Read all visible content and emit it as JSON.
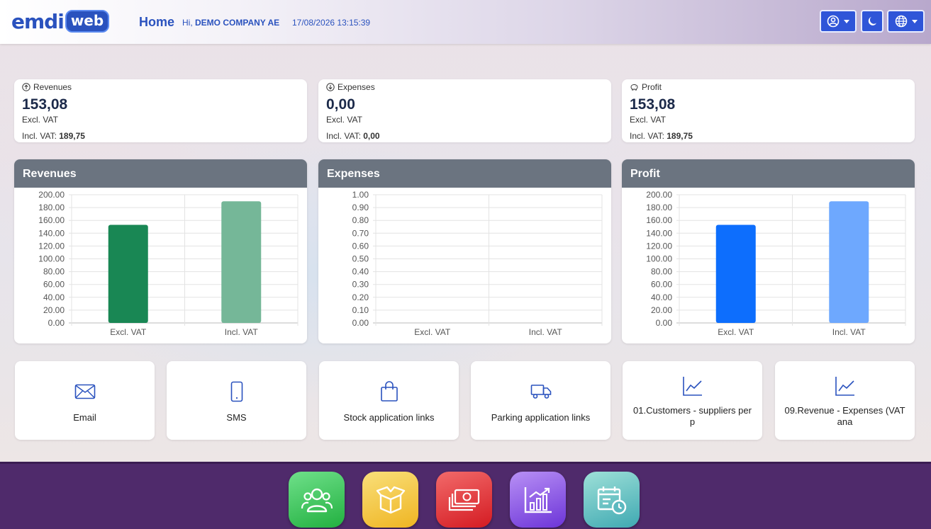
{
  "header": {
    "logo_main": "emdi",
    "logo_badge": "web",
    "title": "Home",
    "greeting_prefix": "Hi, ",
    "company": "DEMO COMPANY AE",
    "datetime": "17/08/2026 13:15:39",
    "buttons": [
      {
        "icon": "user-circle-icon",
        "dropdown": true
      },
      {
        "icon": "moon-icon",
        "dropdown": false
      },
      {
        "icon": "globe-icon",
        "dropdown": true
      }
    ]
  },
  "summary": [
    {
      "label": "Revenues",
      "icon": "arrow-up-circle-icon",
      "value": "153,08",
      "excl_label": "Excl. VAT",
      "incl_label": "Incl. VAT: ",
      "incl_value": "189,75"
    },
    {
      "label": "Expenses",
      "icon": "arrow-down-circle-icon",
      "value": "0,00",
      "excl_label": "Excl. VAT",
      "incl_label": "Incl. VAT: ",
      "incl_value": "0,00"
    },
    {
      "label": "Profit",
      "icon": "piggy-bank-icon",
      "value": "153,08",
      "excl_label": "Excl. VAT",
      "incl_label": "Incl. VAT: ",
      "incl_value": "189,75"
    }
  ],
  "chart_data": [
    {
      "type": "bar",
      "title": "Revenues",
      "categories": [
        "Excl. VAT",
        "Incl. VAT"
      ],
      "values": [
        153.08,
        189.75
      ],
      "colors": [
        "#198754",
        "#75b798"
      ],
      "ylim": [
        0,
        200
      ],
      "yticks": [
        "0.00",
        "20.00",
        "40.00",
        "60.00",
        "80.00",
        "100.00",
        "120.00",
        "140.00",
        "160.00",
        "180.00",
        "200.00"
      ],
      "grid": true
    },
    {
      "type": "bar",
      "title": "Expenses",
      "categories": [
        "Excl. VAT",
        "Incl. VAT"
      ],
      "values": [
        0,
        0
      ],
      "colors": [
        "#dc3545",
        "#ea868f"
      ],
      "ylim": [
        0,
        1
      ],
      "yticks": [
        "0.00",
        "0.10",
        "0.20",
        "0.30",
        "0.40",
        "0.50",
        "0.60",
        "0.70",
        "0.80",
        "0.90",
        "1.00"
      ],
      "grid": true
    },
    {
      "type": "bar",
      "title": "Profit",
      "categories": [
        "Excl. VAT",
        "Incl. VAT"
      ],
      "values": [
        153.08,
        189.75
      ],
      "colors": [
        "#0d6efd",
        "#6ea8fe"
      ],
      "ylim": [
        0,
        200
      ],
      "yticks": [
        "0.00",
        "20.00",
        "40.00",
        "60.00",
        "80.00",
        "100.00",
        "120.00",
        "140.00",
        "160.00",
        "180.00",
        "200.00"
      ],
      "grid": true
    }
  ],
  "tiles": [
    {
      "label": "Email",
      "icon": "envelope-icon"
    },
    {
      "label": "SMS",
      "icon": "phone-icon"
    },
    {
      "label": "Stock application links",
      "icon": "shopping-bag-icon"
    },
    {
      "label": "Parking application links",
      "icon": "truck-icon"
    },
    {
      "label": "01.Customers - suppliers per p",
      "icon": "line-chart-icon"
    },
    {
      "label": "09.Revenue - Expenses (VAT ana",
      "icon": "line-chart-icon"
    }
  ],
  "apps": [
    {
      "name": "contacts",
      "icon": "users-icon",
      "color": "#2ec24a"
    },
    {
      "name": "items",
      "icon": "box-icon",
      "color": "#f2c12e"
    },
    {
      "name": "finance",
      "icon": "money-icon",
      "color": "#e8262d"
    },
    {
      "name": "reports",
      "icon": "bar-chart-icon",
      "color": "#8a4fe0"
    },
    {
      "name": "schedule",
      "icon": "calendar-clock-icon",
      "color": "#43b3ad"
    }
  ],
  "colors": {
    "accent": "#2a52be",
    "chart_header": "#6b7480",
    "bottom_bar": "#4f2a6b"
  }
}
